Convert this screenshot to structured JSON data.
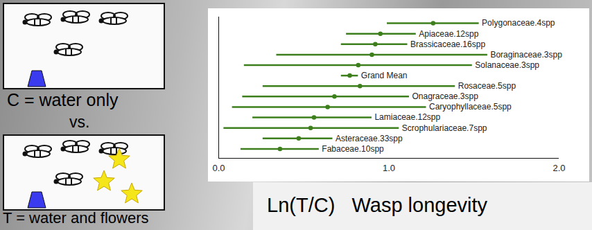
{
  "chart_data": {
    "type": "forest",
    "annotations": [
      "C = water only",
      "vs.",
      "T = water and flowers"
    ],
    "xlabel": "Ln(T/C)   Wasp longevity",
    "categories": [
      "Polygonaceae.4spp",
      "Apiaceae.12spp",
      "Brassicaceae.16spp",
      "Boraginaceae.3spp",
      "Solanaceae.3spp",
      "Grand Mean",
      "Rosaceae.5spp",
      "Onagraceae.3spp",
      "Caryophyllaceae.5spp",
      "Lamiaceae.12spp",
      "Scrophulariaceae.7spp",
      "Asteraceae.33spp",
      "Fabaceae.10spp"
    ],
    "values": [
      1.26,
      0.95,
      0.92,
      0.9,
      0.82,
      0.77,
      0.83,
      0.68,
      0.64,
      0.56,
      0.54,
      0.47,
      0.36
    ],
    "ci_low": [
      0.99,
      0.75,
      0.72,
      0.34,
      0.15,
      0.72,
      0.26,
      0.14,
      0.08,
      0.2,
      0.03,
      0.26,
      0.13
    ],
    "ci_high": [
      1.53,
      1.16,
      1.11,
      1.58,
      1.49,
      0.82,
      1.39,
      1.12,
      1.22,
      0.9,
      1.06,
      0.67,
      0.59
    ],
    "color": "#3d7f1c",
    "xlim": [
      0,
      2
    ],
    "xticks": [
      0,
      1,
      2
    ]
  }
}
